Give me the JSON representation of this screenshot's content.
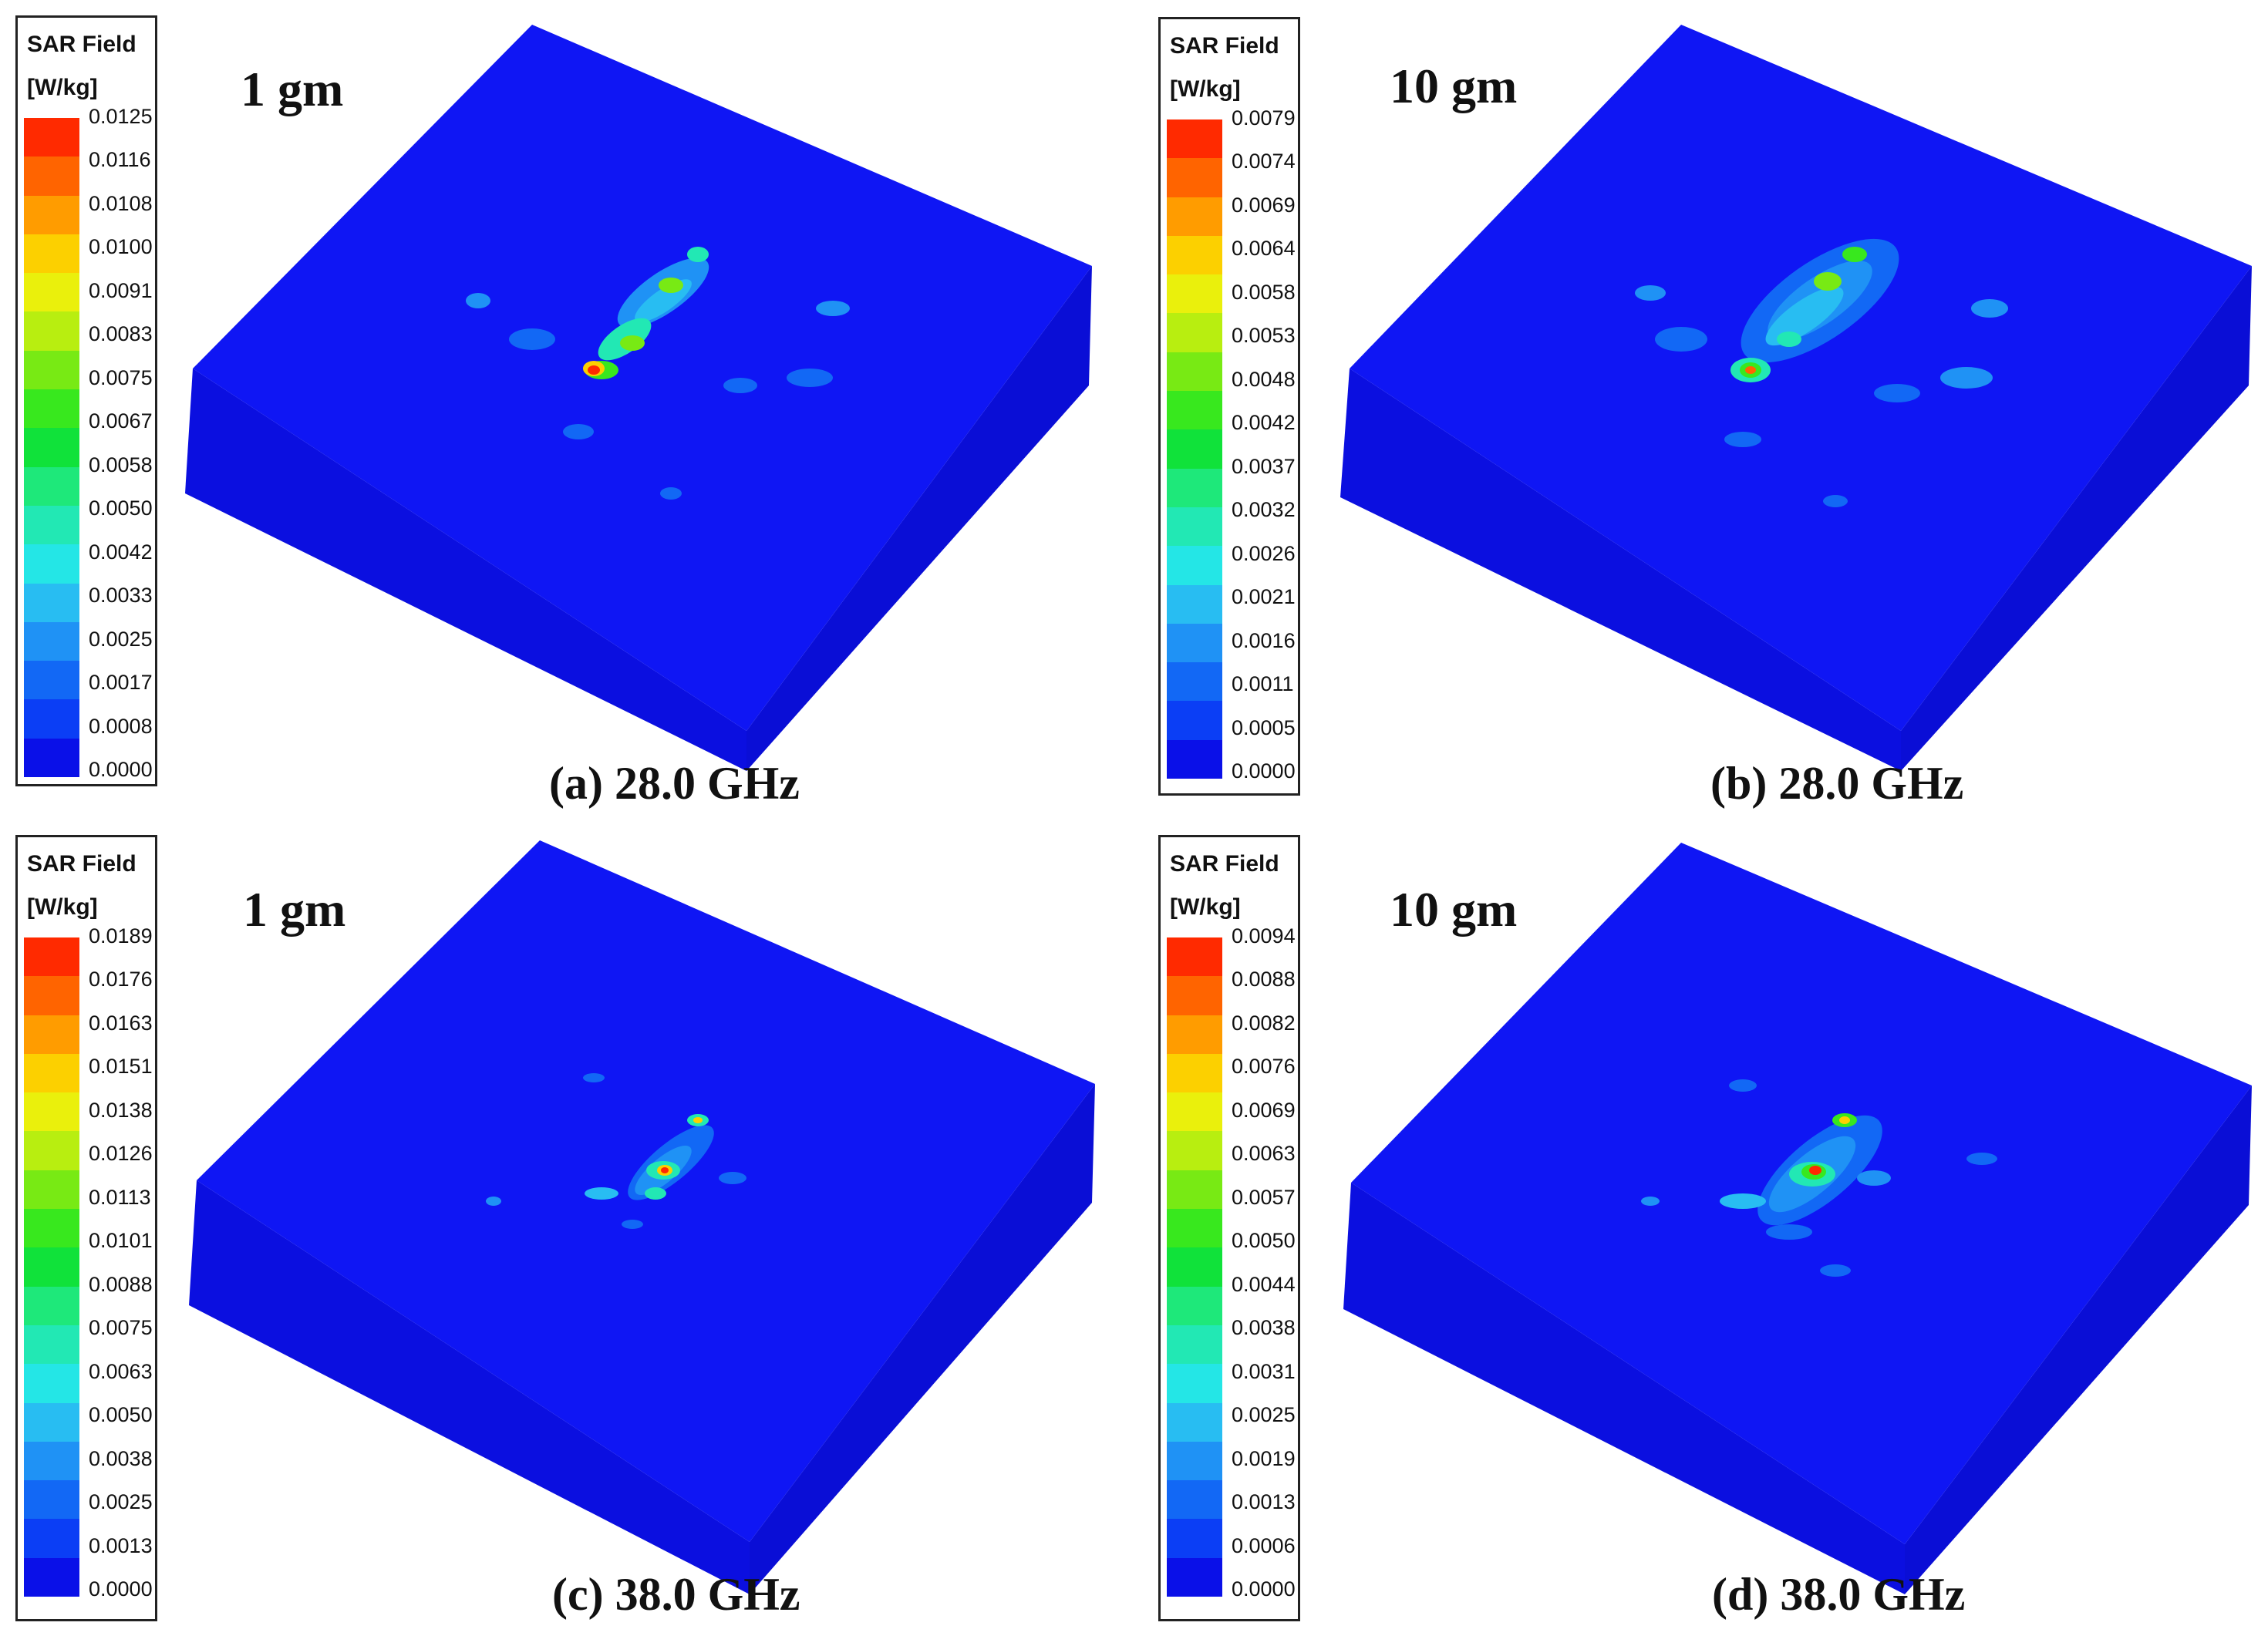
{
  "colors": {
    "scale": [
      "#0a10e8",
      "#0b3ef5",
      "#1268f5",
      "#1f92f5",
      "#28bdf2",
      "#24e6e6",
      "#22e8b4",
      "#1ee87a",
      "#10e23a",
      "#38e81e",
      "#78ea14",
      "#b8ee10",
      "#eaf00c",
      "#fcd000",
      "#ff9c00",
      "#ff6400",
      "#ff2a00"
    ],
    "body": "#0c10ee",
    "body_top": "#0f16f4"
  },
  "panels": [
    {
      "id": "a",
      "tag": "1 gm",
      "caption": "(a) 28.0 GHz",
      "legend": {
        "title": "SAR Field",
        "unit": "[W/kg]",
        "ticks": [
          "0.0125",
          "0.0116",
          "0.0108",
          "0.0100",
          "0.0091",
          "0.0083",
          "0.0075",
          "0.0067",
          "0.0058",
          "0.0050",
          "0.0042",
          "0.0033",
          "0.0025",
          "0.0017",
          "0.0008",
          "0.0000"
        ]
      }
    },
    {
      "id": "b",
      "tag": "10 gm",
      "caption": "(b) 28.0 GHz",
      "legend": {
        "title": "SAR Field",
        "unit": "[W/kg]",
        "ticks": [
          "0.0079",
          "0.0074",
          "0.0069",
          "0.0064",
          "0.0058",
          "0.0053",
          "0.0048",
          "0.0042",
          "0.0037",
          "0.0032",
          "0.0026",
          "0.0021",
          "0.0016",
          "0.0011",
          "0.0005",
          "0.0000"
        ]
      }
    },
    {
      "id": "c",
      "tag": "1 gm",
      "caption": "(c) 38.0 GHz",
      "legend": {
        "title": "SAR Field",
        "unit": "[W/kg]",
        "ticks": [
          "0.0189",
          "0.0176",
          "0.0163",
          "0.0151",
          "0.0138",
          "0.0126",
          "0.0113",
          "0.0101",
          "0.0088",
          "0.0075",
          "0.0063",
          "0.0050",
          "0.0038",
          "0.0025",
          "0.0013",
          "0.0000"
        ]
      }
    },
    {
      "id": "d",
      "tag": "10 gm",
      "caption": "(d) 38.0 GHz",
      "legend": {
        "title": "SAR Field",
        "unit": "[W/kg]",
        "ticks": [
          "0.0094",
          "0.0088",
          "0.0082",
          "0.0076",
          "0.0069",
          "0.0063",
          "0.0057",
          "0.0050",
          "0.0044",
          "0.0038",
          "0.0031",
          "0.0025",
          "0.0019",
          "0.0013",
          "0.0006",
          "0.0000"
        ]
      }
    }
  ]
}
